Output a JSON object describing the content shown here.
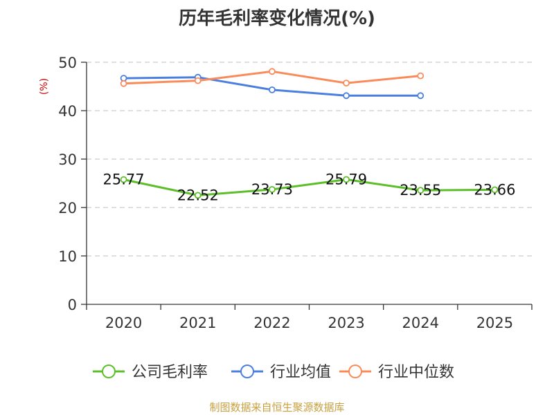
{
  "chart_data": {
    "type": "line",
    "title": "历年毛利率变化情况(%)",
    "ylabel": "(%)",
    "xlabel": "",
    "categories": [
      "2020",
      "2021",
      "2022",
      "2023",
      "2024",
      "2025"
    ],
    "ylim": [
      0,
      50
    ],
    "yticks": [
      0,
      10,
      20,
      30,
      40,
      50
    ],
    "grid": true,
    "legend_position": "bottom",
    "series": [
      {
        "name": "公司毛利率",
        "color": "#5cbf2a",
        "values": [
          25.77,
          22.52,
          23.73,
          25.79,
          23.55,
          23.66
        ],
        "show_labels": true,
        "labels": [
          "25.77",
          "22.52",
          "23.73",
          "25.79",
          "23.55",
          "23.66"
        ]
      },
      {
        "name": "行业均值",
        "color": "#4a7fe0",
        "values": [
          46.7,
          46.9,
          44.3,
          43.1,
          43.1,
          null
        ],
        "show_labels": false
      },
      {
        "name": "行业中位数",
        "color": "#f98b5a",
        "values": [
          45.6,
          46.2,
          48.1,
          45.7,
          47.2,
          null
        ],
        "show_labels": false
      }
    ],
    "ylabel_color": "#cc0000"
  },
  "source_note": {
    "text": "制图数据来自恒生聚源数据库",
    "color": "#c8a040"
  },
  "colors": {
    "grid": "#cccccc",
    "axis": "#333333"
  }
}
